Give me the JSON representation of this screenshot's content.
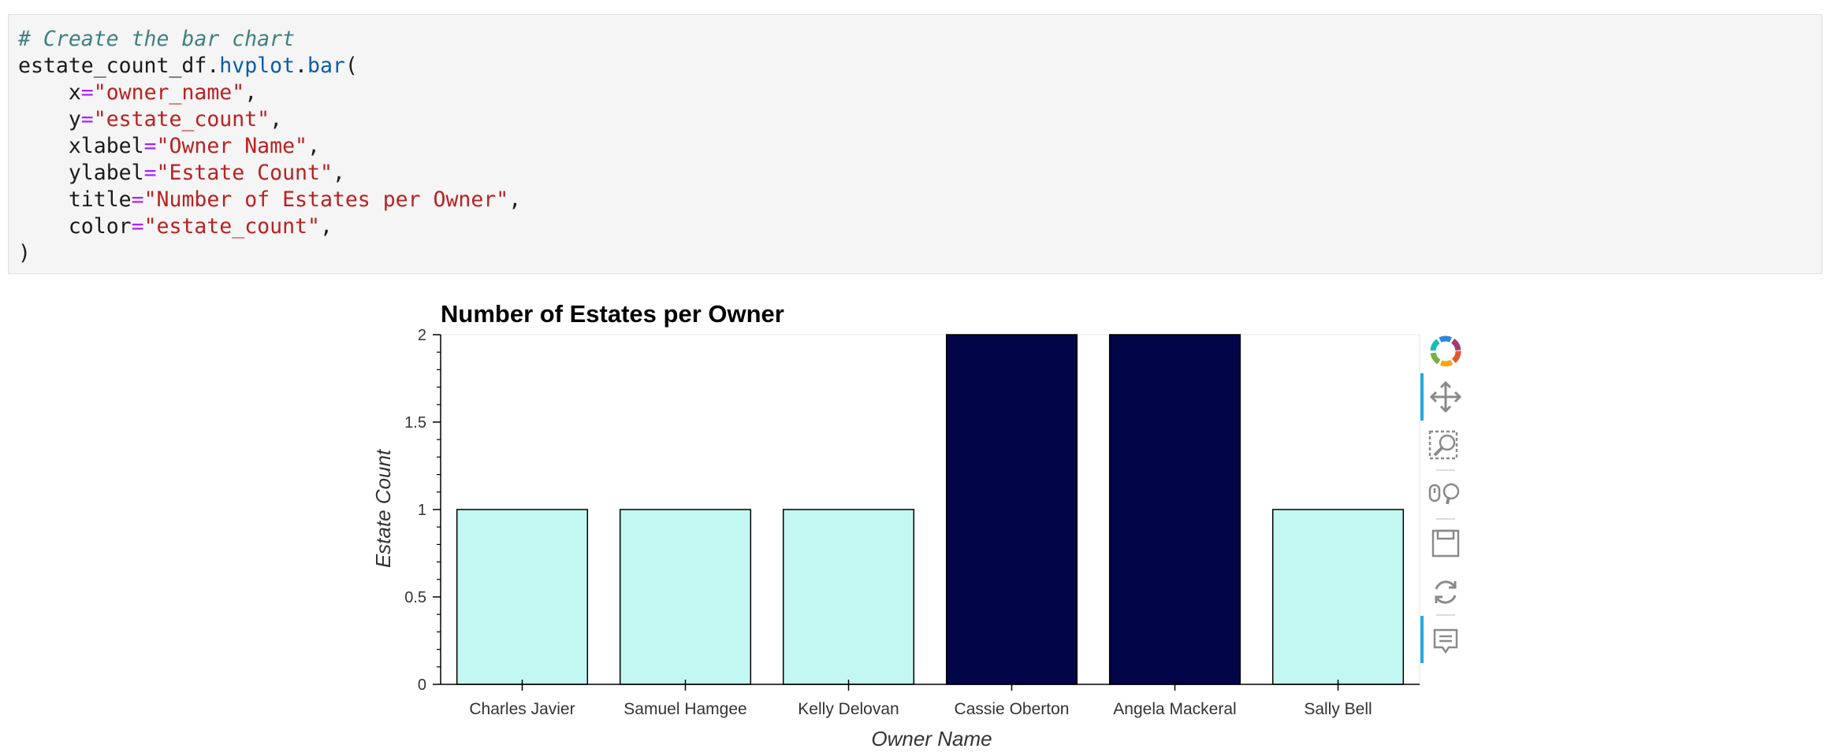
{
  "code": {
    "comment": "# Create the bar chart",
    "call_object": "estate_count_df.",
    "call_attr1": "hvplot",
    "call_dot": ".",
    "call_attr2": "bar",
    "call_open": "(",
    "args": [
      {
        "name": "x",
        "value": "\"owner_name\""
      },
      {
        "name": "y",
        "value": "\"estate_count\""
      },
      {
        "name": "xlabel",
        "value": "\"Owner Name\""
      },
      {
        "name": "ylabel",
        "value": "\"Estate Count\""
      },
      {
        "name": "title",
        "value": "\"Number of Estates per Owner\""
      },
      {
        "name": "color",
        "value": "\"estate_count\""
      }
    ],
    "call_close": ")"
  },
  "chart_data": {
    "type": "bar",
    "title": "Number of Estates per Owner",
    "xlabel": "Owner Name",
    "ylabel": "Estate Count",
    "categories": [
      "Charles Javier",
      "Samuel Hamgee",
      "Kelly Delovan",
      "Cassie Oberton",
      "Angela Mackeral",
      "Sally Bell"
    ],
    "values": [
      1,
      1,
      1,
      2,
      2,
      1
    ],
    "ylim": [
      0,
      2
    ],
    "yticks": [
      "0",
      "0.5",
      "1",
      "1.5",
      "2"
    ],
    "ytick_values": [
      0,
      0.5,
      1,
      1.5,
      2
    ],
    "color_low": "#c2f8f1",
    "color_high": "#020548",
    "grid": false
  },
  "toolbar": {
    "tools": [
      "bokeh-logo-icon",
      "pan-icon",
      "box-zoom-icon",
      "wheel-zoom-icon",
      "save-icon",
      "reset-icon",
      "hover-icon"
    ]
  }
}
